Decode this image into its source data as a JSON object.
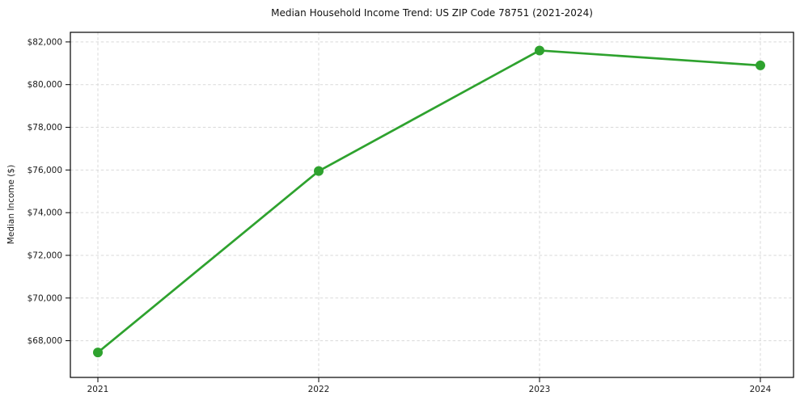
{
  "figure": {
    "background": "#ffffff"
  },
  "chart_data": {
    "type": "line",
    "title": "Median Household Income Trend: US ZIP Code 78751 (2021-2024)",
    "xlabel": "",
    "ylabel": "Median Income ($)",
    "categories": [
      "2021",
      "2022",
      "2023",
      "2024"
    ],
    "series": [
      {
        "name": "Median Household Income",
        "values": [
          67450,
          75950,
          81600,
          80900
        ]
      }
    ],
    "ylim": [
      66280,
      82450
    ],
    "yticks": [
      68000,
      70000,
      72000,
      74000,
      76000,
      78000,
      80000,
      82000
    ],
    "ytick_prefix": "$",
    "grid": true,
    "grid_style": "dashed",
    "legend": "none",
    "colors": {
      "line": "#2ea22e",
      "marker": "#2ea22e",
      "grid": "#d9d9d9",
      "spine": "#000000",
      "tick_label": "#1a1a1a",
      "background": "#ffffff"
    },
    "marker": "circle",
    "marker_radius": 6,
    "line_width": 2.7
  }
}
